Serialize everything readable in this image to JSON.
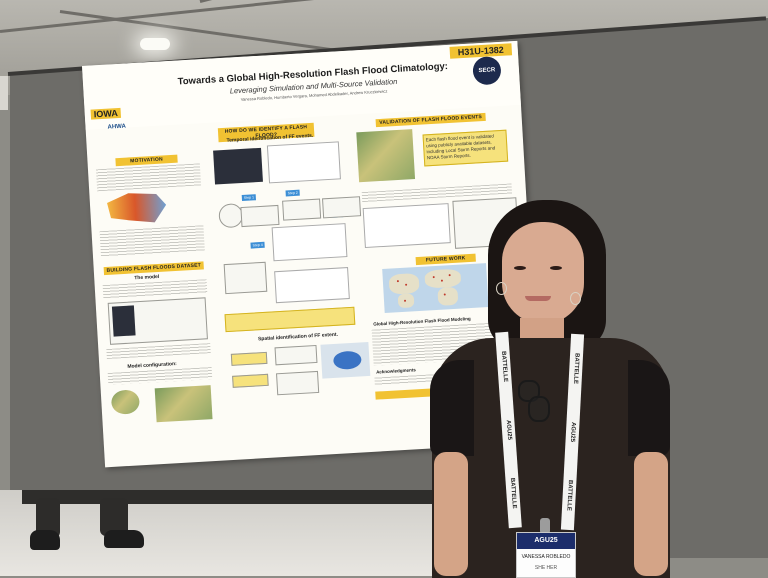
{
  "poster": {
    "id": "H31U-1382",
    "title": "Towards a Global High-Resolution Flash Flood Climatology:",
    "subtitle": "Leveraging Simulation and Multi-Source Validation",
    "authors": "Vanessa Robledo, Humberto Vergara, Mohamed Abdelkader, Andrew Kruczkiewicz",
    "logo_left": "IOWA",
    "logo_left_2": "AHWA",
    "logo_right": "SECR",
    "sections": {
      "motivation": "MOTIVATION",
      "how_identify": "HOW DO WE IDENTIFY A FLASH FLOOD?",
      "temporal": "Temporal identification of FF events.",
      "validation": "VALIDATION OF FLASH FLOOD EVENTS",
      "building": "BUILDING FLASH FLOODS DATASET",
      "model": "The model",
      "model_config": "Model configuration:",
      "spatial": "Spatial identification of FF extent.",
      "future": "FUTURE WORK",
      "future_sub": "Global High-Resolution Flash Flood Modeling",
      "ack": "Acknowledgments"
    },
    "validation_note": "Each flash flood event is validated using publicly available datasets, including Local Storm Reports and NOAA Storm Reports."
  },
  "badge": {
    "lanyard_text": "BATTELLE",
    "lanyard_text_2": "AGU25",
    "header": "AGU25",
    "name": "VANESSA ROBLEDO",
    "role": "SHE HER"
  }
}
